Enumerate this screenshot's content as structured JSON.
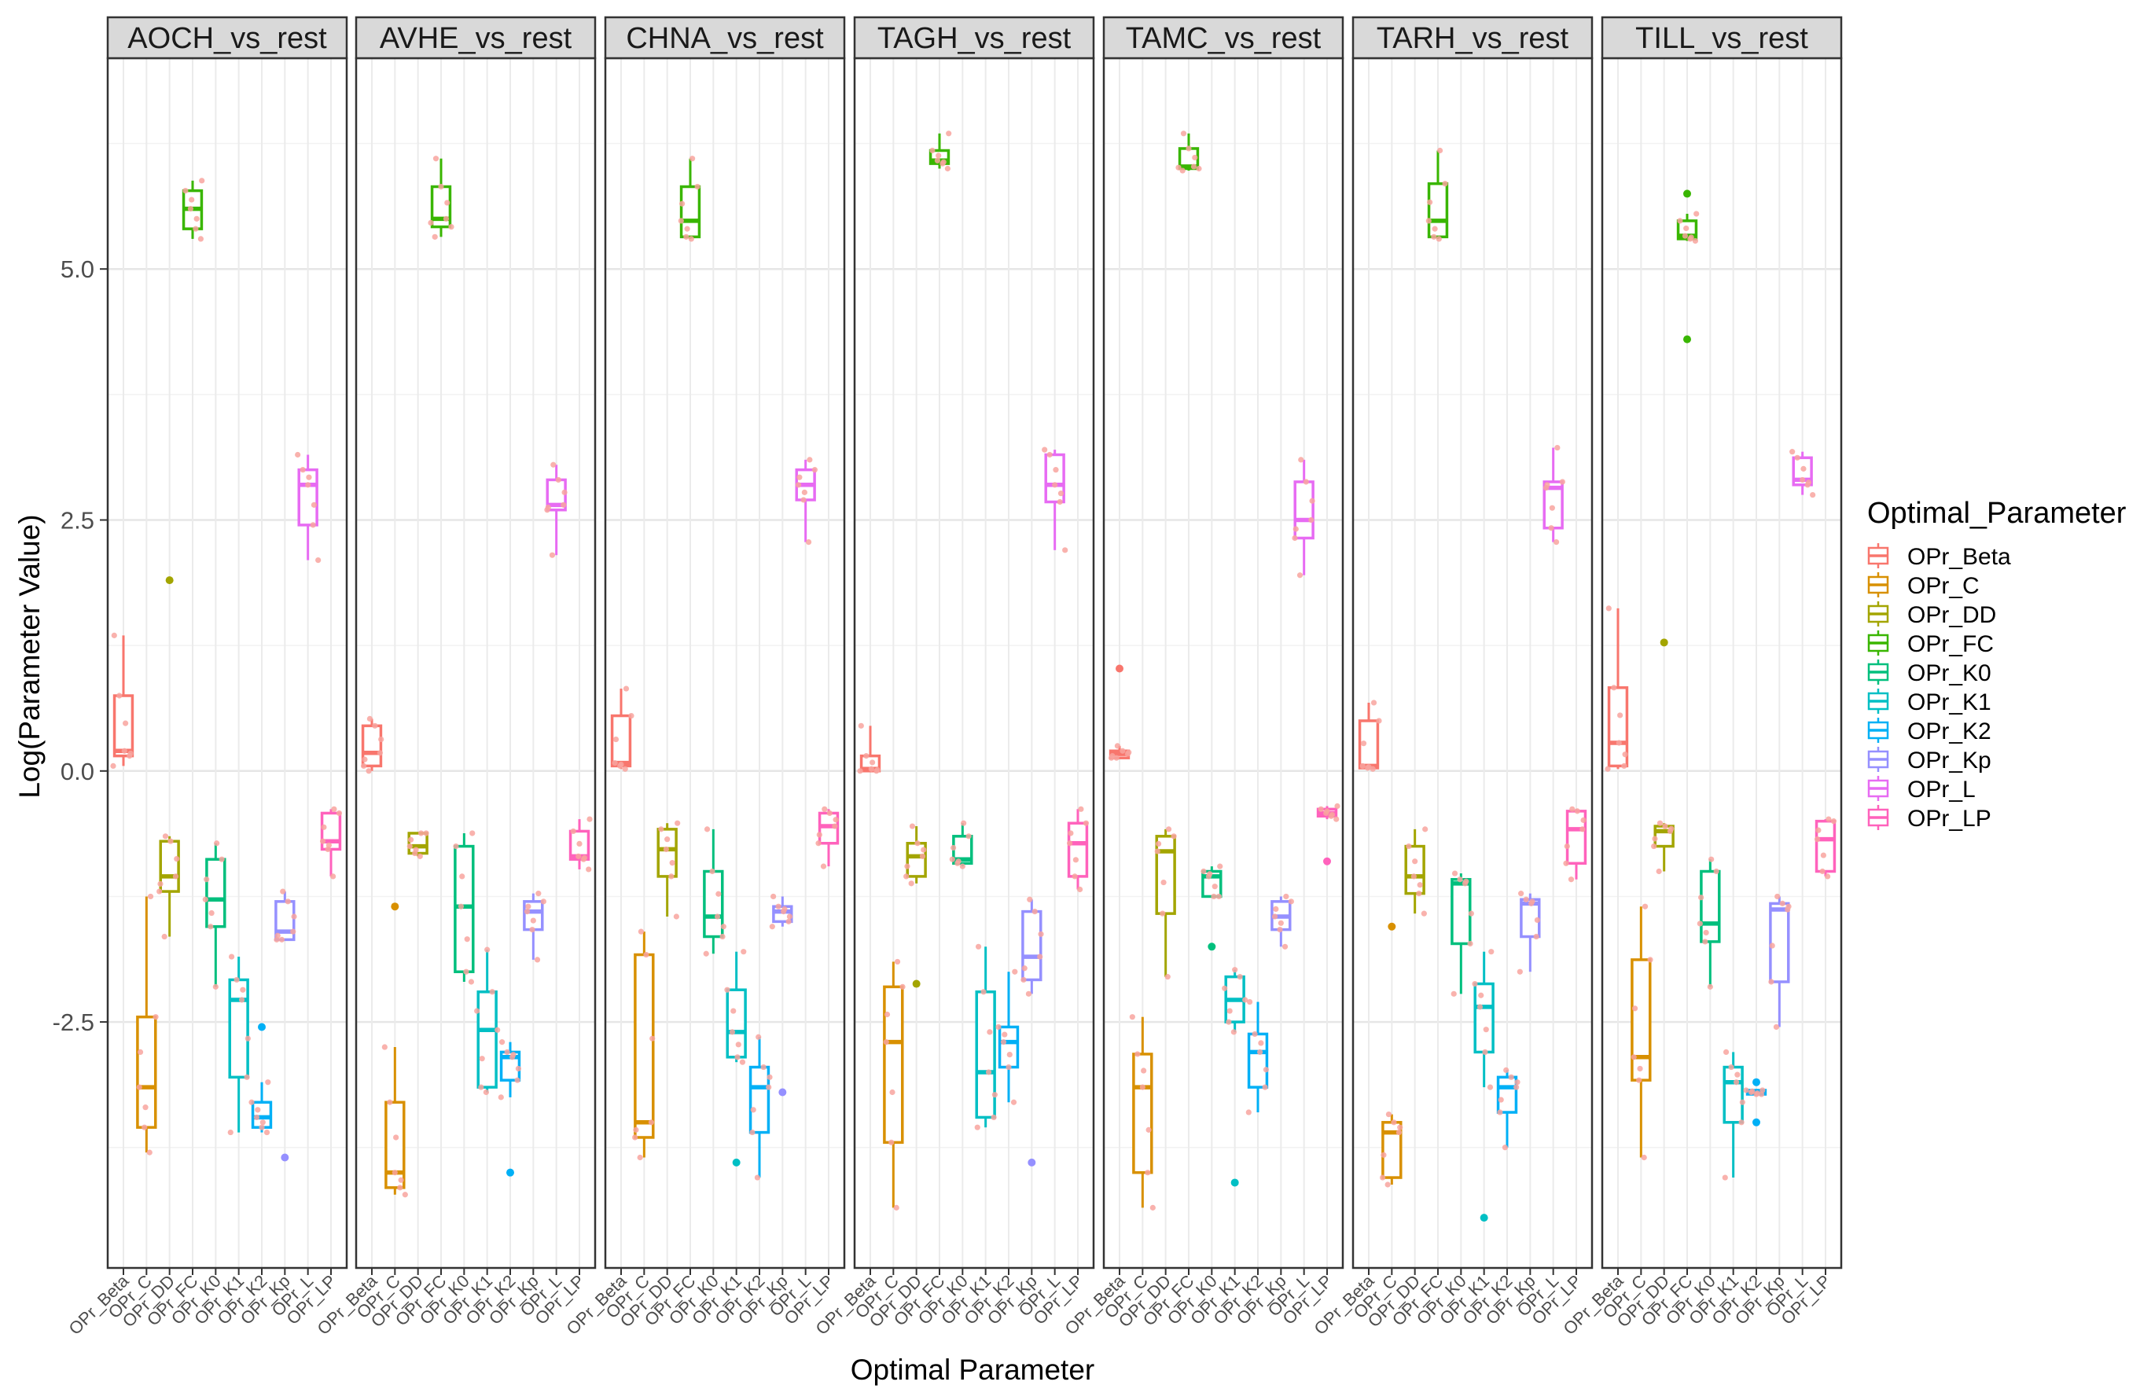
{
  "chart_data": {
    "type": "boxplot",
    "xlabel": "Optimal Parameter",
    "ylabel": "Log(Parameter Value)",
    "ylim": [
      -4.95,
      7.1
    ],
    "y_ticks": [
      5.0,
      2.5,
      0.0,
      -2.5
    ],
    "y_tick_labels": [
      "5.0",
      "2.5",
      "0.0",
      "-2.5"
    ],
    "grid": true,
    "legend": {
      "title": "Optimal_Parameter",
      "position": "right"
    },
    "categories": [
      "OPr_Beta",
      "OPr_C",
      "OPr_DD",
      "OPr_FC",
      "OPr_K0",
      "OPr_K1",
      "OPr_K2",
      "OPr_Kp",
      "OPr_L",
      "OPr_LP"
    ],
    "colors": {
      "OPr_Beta": "#F8766D",
      "OPr_C": "#D89000",
      "OPr_DD": "#A3A500",
      "OPr_FC": "#39B600",
      "OPr_K0": "#00BF7D",
      "OPr_K1": "#00BFC4",
      "OPr_K2": "#00B0F6",
      "OPr_Kp": "#9590FF",
      "OPr_L": "#E76BF3",
      "OPr_LP": "#FF62BC"
    },
    "panels": [
      {
        "name": "AOCH_vs_rest",
        "boxes": [
          {
            "param": "OPr_Beta",
            "q1": 0.15,
            "med": 0.2,
            "q3": 0.75,
            "lo": 0.05,
            "hi": 1.35,
            "out": []
          },
          {
            "param": "OPr_C",
            "q1": -3.55,
            "med": -3.15,
            "q3": -2.45,
            "lo": -3.8,
            "hi": -1.25,
            "out": []
          },
          {
            "param": "OPr_DD",
            "q1": -1.2,
            "med": -1.05,
            "q3": -0.7,
            "lo": -1.65,
            "hi": -0.65,
            "out": [
              1.9
            ]
          },
          {
            "param": "OPr_FC",
            "q1": 5.4,
            "med": 5.6,
            "q3": 5.78,
            "lo": 5.3,
            "hi": 5.88,
            "out": []
          },
          {
            "param": "OPr_K0",
            "q1": -1.55,
            "med": -1.28,
            "q3": -0.88,
            "lo": -2.15,
            "hi": -0.72,
            "out": []
          },
          {
            "param": "OPr_K1",
            "q1": -3.05,
            "med": -2.28,
            "q3": -2.08,
            "lo": -3.6,
            "hi": -1.85,
            "out": []
          },
          {
            "param": "OPr_K2",
            "q1": -3.55,
            "med": -3.45,
            "q3": -3.3,
            "lo": -3.6,
            "hi": -3.1,
            "out": [
              -2.55
            ]
          },
          {
            "param": "OPr_Kp",
            "q1": -1.68,
            "med": -1.6,
            "q3": -1.3,
            "lo": -1.68,
            "hi": -1.2,
            "out": [
              -3.85
            ]
          },
          {
            "param": "OPr_L",
            "q1": 2.45,
            "med": 2.85,
            "q3": 3.0,
            "lo": 2.1,
            "hi": 3.15,
            "out": []
          },
          {
            "param": "OPr_LP",
            "q1": -0.78,
            "med": -0.7,
            "q3": -0.42,
            "lo": -1.05,
            "hi": -0.38,
            "out": []
          }
        ]
      },
      {
        "name": "AVHE_vs_rest",
        "boxes": [
          {
            "param": "OPr_Beta",
            "q1": 0.05,
            "med": 0.18,
            "q3": 0.45,
            "lo": 0.0,
            "hi": 0.52,
            "out": []
          },
          {
            "param": "OPr_C",
            "q1": -4.15,
            "med": -4.0,
            "q3": -3.3,
            "lo": -4.22,
            "hi": -2.75,
            "out": [
              -1.35
            ]
          },
          {
            "param": "OPr_DD",
            "q1": -0.82,
            "med": -0.75,
            "q3": -0.62,
            "lo": -0.85,
            "hi": -0.62,
            "out": []
          },
          {
            "param": "OPr_FC",
            "q1": 5.42,
            "med": 5.5,
            "q3": 5.82,
            "lo": 5.32,
            "hi": 6.1,
            "out": []
          },
          {
            "param": "OPr_K0",
            "q1": -2.0,
            "med": -1.35,
            "q3": -0.75,
            "lo": -2.1,
            "hi": -0.62,
            "out": []
          },
          {
            "param": "OPr_K1",
            "q1": -3.15,
            "med": -2.58,
            "q3": -2.2,
            "lo": -3.2,
            "hi": -1.78,
            "out": []
          },
          {
            "param": "OPr_K2",
            "q1": -3.08,
            "med": -2.85,
            "q3": -2.8,
            "lo": -3.25,
            "hi": -2.7,
            "out": [
              -4.0
            ]
          },
          {
            "param": "OPr_Kp",
            "q1": -1.58,
            "med": -1.4,
            "q3": -1.3,
            "lo": -1.88,
            "hi": -1.22,
            "out": []
          },
          {
            "param": "OPr_L",
            "q1": 2.6,
            "med": 2.65,
            "q3": 2.9,
            "lo": 2.15,
            "hi": 3.05,
            "out": []
          },
          {
            "param": "OPr_LP",
            "q1": -0.88,
            "med": -0.85,
            "q3": -0.6,
            "lo": -0.98,
            "hi": -0.48,
            "out": []
          }
        ]
      },
      {
        "name": "CHNA_vs_rest",
        "boxes": [
          {
            "param": "OPr_Beta",
            "q1": 0.05,
            "med": 0.08,
            "q3": 0.55,
            "lo": 0.02,
            "hi": 0.82,
            "out": []
          },
          {
            "param": "OPr_C",
            "q1": -3.65,
            "med": -3.5,
            "q3": -1.83,
            "lo": -3.85,
            "hi": -1.6,
            "out": []
          },
          {
            "param": "OPr_DD",
            "q1": -1.05,
            "med": -0.78,
            "q3": -0.58,
            "lo": -1.45,
            "hi": -0.52,
            "out": []
          },
          {
            "param": "OPr_FC",
            "q1": 5.32,
            "med": 5.48,
            "q3": 5.82,
            "lo": 5.3,
            "hi": 6.1,
            "out": []
          },
          {
            "param": "OPr_K0",
            "q1": -1.65,
            "med": -1.45,
            "q3": -1.0,
            "lo": -1.82,
            "hi": -0.58,
            "out": []
          },
          {
            "param": "OPr_K1",
            "q1": -2.85,
            "med": -2.6,
            "q3": -2.18,
            "lo": -2.9,
            "hi": -1.8,
            "out": [
              -3.9
            ]
          },
          {
            "param": "OPr_K2",
            "q1": -3.6,
            "med": -3.15,
            "q3": -2.95,
            "lo": -4.05,
            "hi": -2.65,
            "out": []
          },
          {
            "param": "OPr_Kp",
            "q1": -1.5,
            "med": -1.4,
            "q3": -1.35,
            "lo": -1.55,
            "hi": -1.25,
            "out": [
              -3.2
            ]
          },
          {
            "param": "OPr_L",
            "q1": 2.7,
            "med": 2.85,
            "q3": 3.0,
            "lo": 2.28,
            "hi": 3.1,
            "out": []
          },
          {
            "param": "OPr_LP",
            "q1": -0.72,
            "med": -0.55,
            "q3": -0.42,
            "lo": -0.95,
            "hi": -0.38,
            "out": []
          }
        ]
      },
      {
        "name": "TAGH_vs_rest",
        "boxes": [
          {
            "param": "OPr_Beta",
            "q1": 0.0,
            "med": 0.02,
            "q3": 0.15,
            "lo": 0.0,
            "hi": 0.45,
            "out": []
          },
          {
            "param": "OPr_C",
            "q1": -3.7,
            "med": -2.7,
            "q3": -2.15,
            "lo": -4.35,
            "hi": -1.9,
            "out": []
          },
          {
            "param": "OPr_DD",
            "q1": -1.05,
            "med": -0.85,
            "q3": -0.72,
            "lo": -1.12,
            "hi": -0.55,
            "out": [
              -2.12
            ]
          },
          {
            "param": "OPr_FC",
            "q1": 6.05,
            "med": 6.08,
            "q3": 6.18,
            "lo": 6.0,
            "hi": 6.35,
            "out": []
          },
          {
            "param": "OPr_K0",
            "q1": -0.92,
            "med": -0.88,
            "q3": -0.65,
            "lo": -0.95,
            "hi": -0.52,
            "out": []
          },
          {
            "param": "OPr_K1",
            "q1": -3.45,
            "med": -3.0,
            "q3": -2.2,
            "lo": -3.55,
            "hi": -1.75,
            "out": []
          },
          {
            "param": "OPr_K2",
            "q1": -2.95,
            "med": -2.7,
            "q3": -2.55,
            "lo": -3.3,
            "hi": -2.0,
            "out": []
          },
          {
            "param": "OPr_Kp",
            "q1": -2.08,
            "med": -1.85,
            "q3": -1.4,
            "lo": -2.22,
            "hi": -1.28,
            "out": [
              -3.9
            ]
          },
          {
            "param": "OPr_L",
            "q1": 2.68,
            "med": 2.85,
            "q3": 3.15,
            "lo": 2.2,
            "hi": 3.2,
            "out": []
          },
          {
            "param": "OPr_LP",
            "q1": -1.05,
            "med": -0.72,
            "q3": -0.52,
            "lo": -1.18,
            "hi": -0.38,
            "out": []
          }
        ]
      },
      {
        "name": "TAMC_vs_rest",
        "boxes": [
          {
            "param": "OPr_Beta",
            "q1": 0.13,
            "med": 0.17,
            "q3": 0.2,
            "lo": 0.13,
            "hi": 0.25,
            "out": [
              1.02
            ]
          },
          {
            "param": "OPr_C",
            "q1": -4.0,
            "med": -3.15,
            "q3": -2.82,
            "lo": -4.35,
            "hi": -2.45,
            "out": []
          },
          {
            "param": "OPr_DD",
            "q1": -1.42,
            "med": -0.8,
            "q3": -0.65,
            "lo": -2.05,
            "hi": -0.58,
            "out": []
          },
          {
            "param": "OPr_FC",
            "q1": 6.0,
            "med": 6.02,
            "q3": 6.2,
            "lo": 5.98,
            "hi": 6.35,
            "out": []
          },
          {
            "param": "OPr_K0",
            "q1": -1.25,
            "med": -1.05,
            "q3": -1.0,
            "lo": -1.25,
            "hi": -0.95,
            "out": [
              -1.75
            ]
          },
          {
            "param": "OPr_K1",
            "q1": -2.5,
            "med": -2.28,
            "q3": -2.05,
            "lo": -2.6,
            "hi": -1.98,
            "out": [
              -4.1
            ]
          },
          {
            "param": "OPr_K2",
            "q1": -3.15,
            "med": -2.8,
            "q3": -2.62,
            "lo": -3.4,
            "hi": -2.3,
            "out": []
          },
          {
            "param": "OPr_Kp",
            "q1": -1.58,
            "med": -1.45,
            "q3": -1.3,
            "lo": -1.75,
            "hi": -1.25,
            "out": []
          },
          {
            "param": "OPr_L",
            "q1": 2.32,
            "med": 2.5,
            "q3": 2.88,
            "lo": 1.95,
            "hi": 3.1,
            "out": []
          },
          {
            "param": "OPr_LP",
            "q1": -0.45,
            "med": -0.42,
            "q3": -0.38,
            "lo": -0.48,
            "hi": -0.35,
            "out": [
              -0.9
            ]
          }
        ]
      },
      {
        "name": "TARH_vs_rest",
        "boxes": [
          {
            "param": "OPr_Beta",
            "q1": 0.03,
            "med": 0.05,
            "q3": 0.5,
            "lo": 0.02,
            "hi": 0.68,
            "out": []
          },
          {
            "param": "OPr_C",
            "q1": -4.05,
            "med": -3.6,
            "q3": -3.5,
            "lo": -4.12,
            "hi": -3.42,
            "out": [
              -1.55
            ]
          },
          {
            "param": "OPr_DD",
            "q1": -1.22,
            "med": -1.05,
            "q3": -0.75,
            "lo": -1.42,
            "hi": -0.58,
            "out": []
          },
          {
            "param": "OPr_FC",
            "q1": 5.32,
            "med": 5.48,
            "q3": 5.85,
            "lo": 5.3,
            "hi": 6.18,
            "out": []
          },
          {
            "param": "OPr_K0",
            "q1": -1.72,
            "med": -1.12,
            "q3": -1.08,
            "lo": -2.22,
            "hi": -1.02,
            "out": []
          },
          {
            "param": "OPr_K1",
            "q1": -2.8,
            "med": -2.35,
            "q3": -2.12,
            "lo": -3.15,
            "hi": -1.8,
            "out": [
              -4.45
            ]
          },
          {
            "param": "OPr_K2",
            "q1": -3.4,
            "med": -3.15,
            "q3": -3.05,
            "lo": -3.75,
            "hi": -2.98,
            "out": []
          },
          {
            "param": "OPr_Kp",
            "q1": -1.65,
            "med": -1.32,
            "q3": -1.28,
            "lo": -2.0,
            "hi": -1.22,
            "out": []
          },
          {
            "param": "OPr_L",
            "q1": 2.42,
            "med": 2.82,
            "q3": 2.88,
            "lo": 2.28,
            "hi": 3.22,
            "out": []
          },
          {
            "param": "OPr_LP",
            "q1": -0.92,
            "med": -0.58,
            "q3": -0.4,
            "lo": -1.08,
            "hi": -0.38,
            "out": []
          }
        ]
      },
      {
        "name": "TILL_vs_rest",
        "boxes": [
          {
            "param": "OPr_Beta",
            "q1": 0.05,
            "med": 0.28,
            "q3": 0.83,
            "lo": 0.02,
            "hi": 1.62,
            "out": []
          },
          {
            "param": "OPr_C",
            "q1": -3.08,
            "med": -2.85,
            "q3": -1.88,
            "lo": -3.85,
            "hi": -1.35,
            "out": []
          },
          {
            "param": "OPr_DD",
            "q1": -0.75,
            "med": -0.6,
            "q3": -0.55,
            "lo": -1.0,
            "hi": -0.52,
            "out": [
              1.28
            ]
          },
          {
            "param": "OPr_FC",
            "q1": 5.3,
            "med": 5.33,
            "q3": 5.48,
            "lo": 5.28,
            "hi": 5.55,
            "out": [
              5.75,
              4.3
            ]
          },
          {
            "param": "OPr_K0",
            "q1": -1.7,
            "med": -1.52,
            "q3": -1.0,
            "lo": -2.15,
            "hi": -0.88,
            "out": []
          },
          {
            "param": "OPr_K1",
            "q1": -3.5,
            "med": -3.1,
            "q3": -2.95,
            "lo": -4.05,
            "hi": -2.8,
            "out": []
          },
          {
            "param": "OPr_K2",
            "q1": -3.22,
            "med": -3.2,
            "q3": -3.18,
            "lo": -3.22,
            "hi": -3.18,
            "out": [
              -3.1,
              -3.5
            ]
          },
          {
            "param": "OPr_Kp",
            "q1": -2.1,
            "med": -1.38,
            "q3": -1.32,
            "lo": -2.55,
            "hi": -1.25,
            "out": []
          },
          {
            "param": "OPr_L",
            "q1": 2.85,
            "med": 2.9,
            "q3": 3.12,
            "lo": 2.75,
            "hi": 3.18,
            "out": []
          },
          {
            "param": "OPr_LP",
            "q1": -1.0,
            "med": -0.68,
            "q3": -0.5,
            "lo": -1.05,
            "hi": -0.48,
            "out": []
          }
        ]
      }
    ]
  }
}
